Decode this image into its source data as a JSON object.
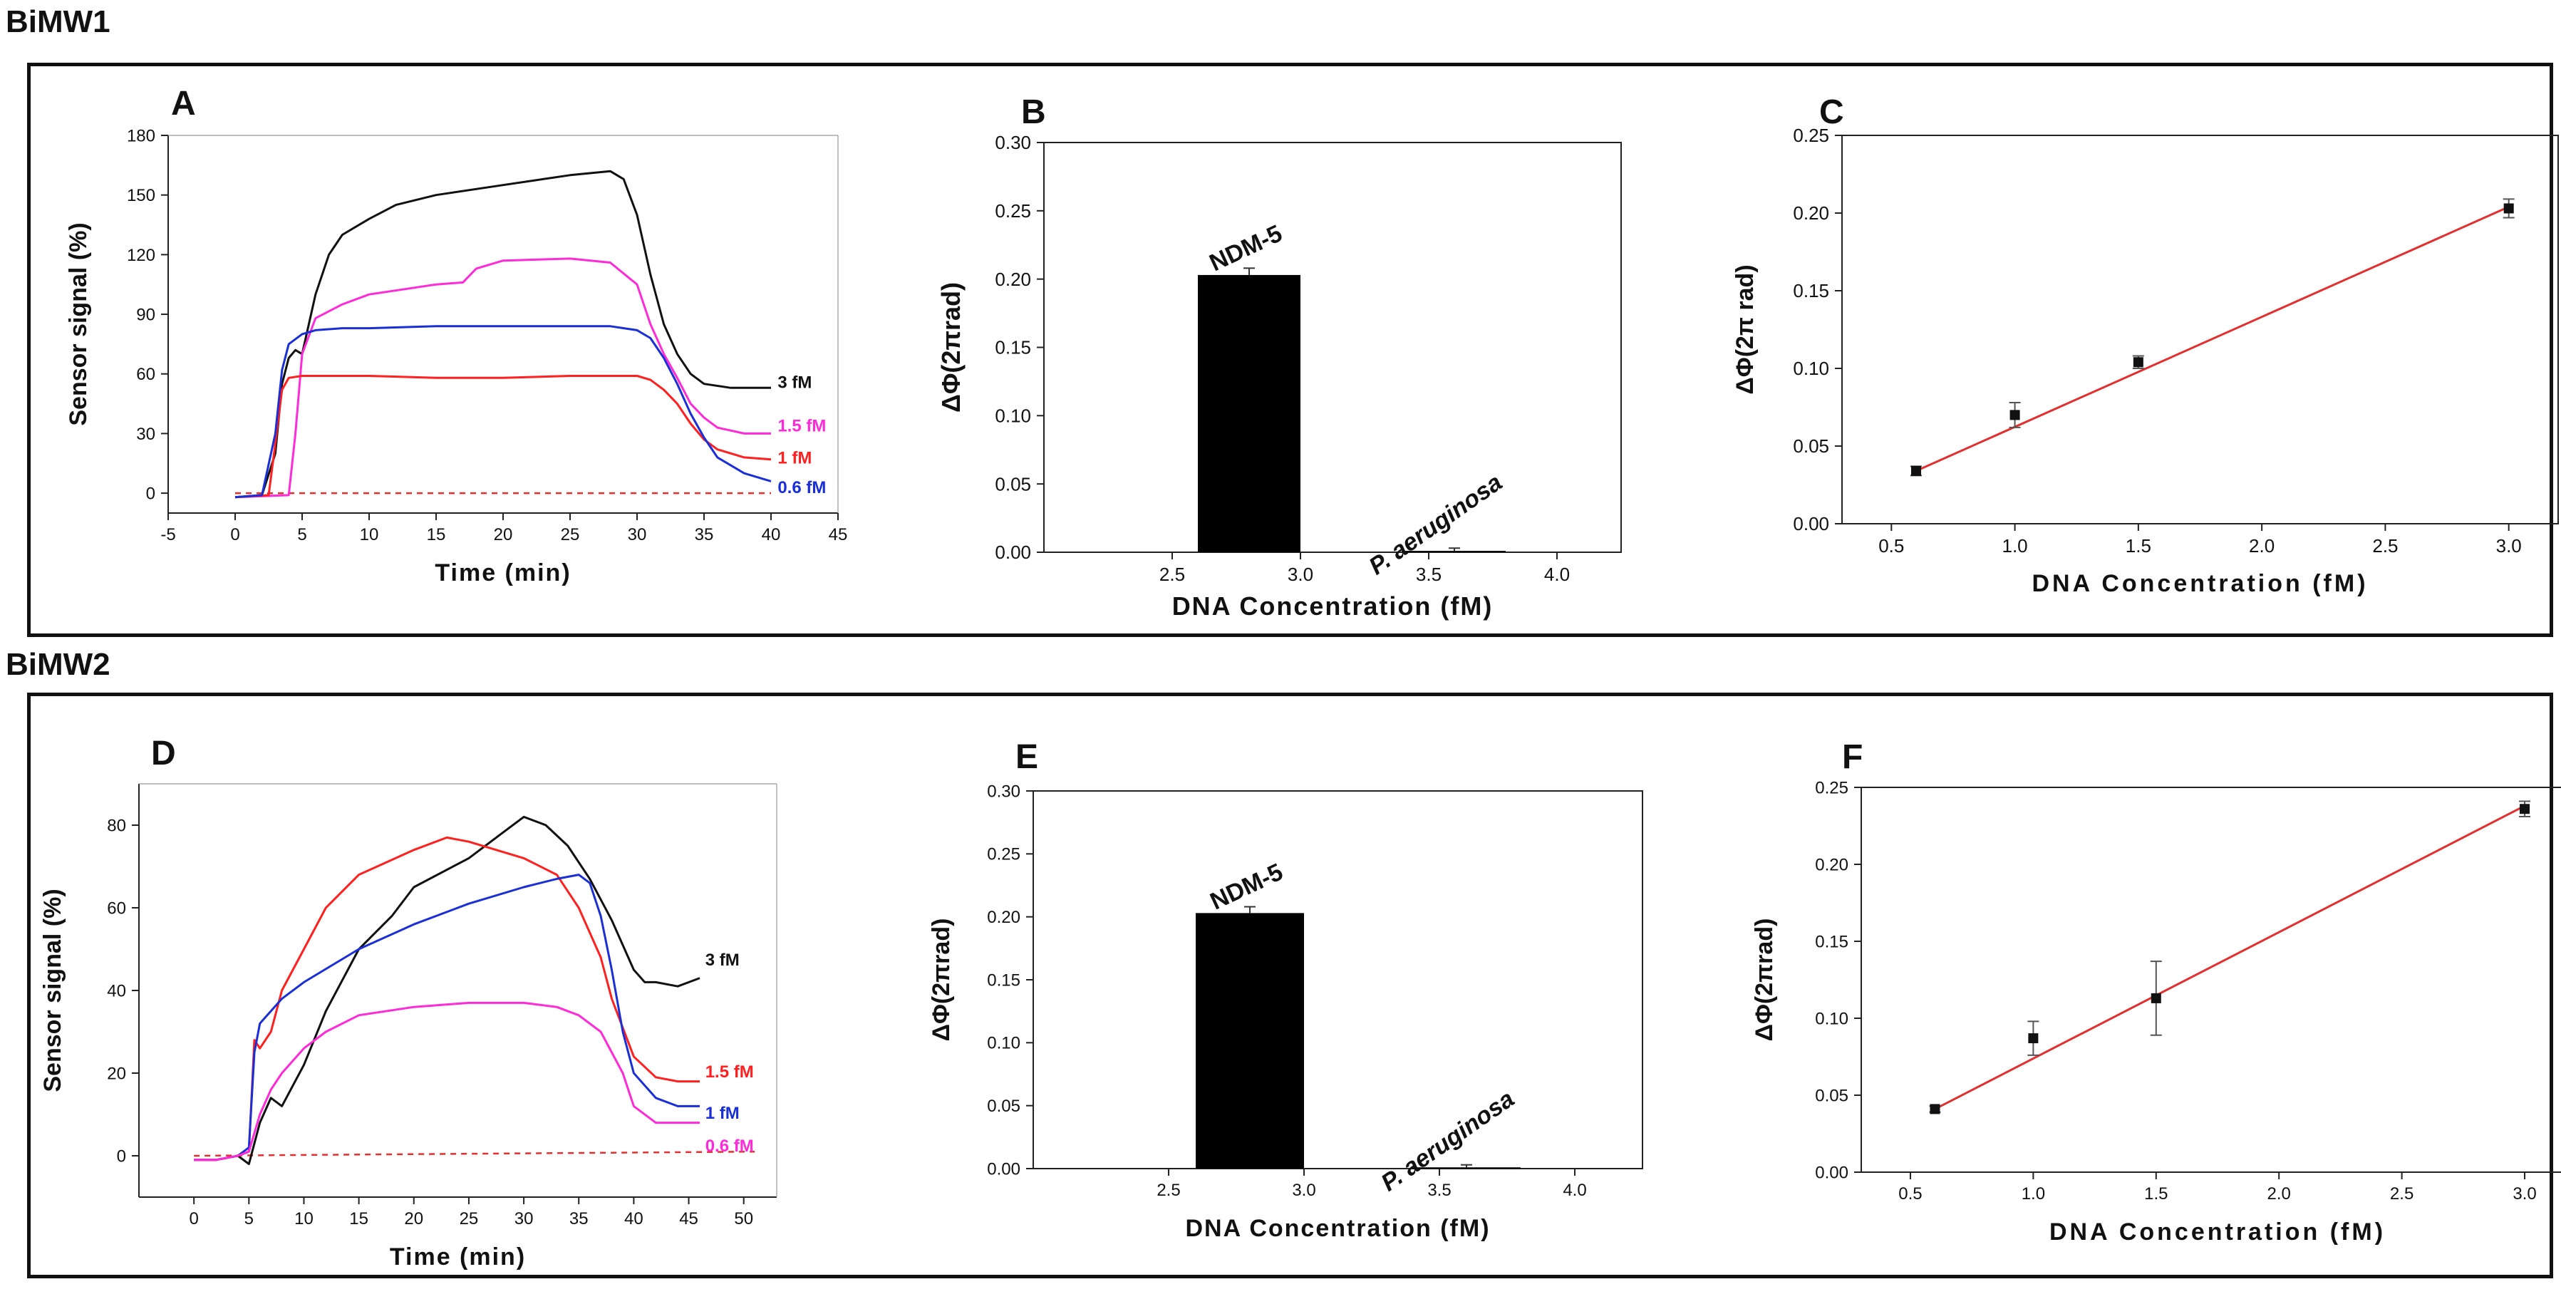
{
  "sections": [
    {
      "title": "BiMW1"
    },
    {
      "title": "BiMW2"
    }
  ],
  "chart_data": [
    {
      "panel": "A",
      "type": "line",
      "title": "",
      "xlabel": "Time (min)",
      "ylabel": "Sensor signal (%)",
      "xlim": [
        -5,
        45
      ],
      "ylim": [
        -10,
        180
      ],
      "xticks": [
        -5,
        0,
        5,
        10,
        15,
        20,
        25,
        30,
        35,
        40,
        45
      ],
      "yticks": [
        0,
        30,
        60,
        90,
        120,
        150,
        180
      ],
      "baseline": {
        "x": [
          0,
          40
        ],
        "y": [
          0,
          0
        ],
        "color": "#e03030",
        "dash": true
      },
      "series": [
        {
          "name": "3 fM",
          "color": "#111111",
          "x": [
            0,
            2,
            3,
            3.5,
            4,
            4.5,
            5,
            5.5,
            6,
            7,
            8,
            10,
            12,
            15,
            20,
            25,
            28,
            29,
            30,
            31,
            32,
            33,
            34,
            35,
            37,
            40
          ],
          "y": [
            -2,
            -1,
            20,
            55,
            68,
            72,
            70,
            85,
            100,
            120,
            130,
            138,
            145,
            150,
            155,
            160,
            162,
            158,
            140,
            110,
            85,
            70,
            60,
            55,
            53,
            53
          ]
        },
        {
          "name": "1.5 fM",
          "color": "#ff2bd6",
          "x": [
            0,
            4,
            4.5,
            5,
            6,
            8,
            10,
            13,
            15,
            17,
            18,
            20,
            25,
            28,
            30,
            31,
            32,
            33,
            34,
            35,
            36,
            38,
            40
          ],
          "y": [
            -2,
            -1,
            30,
            70,
            88,
            95,
            100,
            103,
            105,
            106,
            113,
            117,
            118,
            116,
            105,
            85,
            70,
            58,
            45,
            38,
            33,
            30,
            30
          ]
        },
        {
          "name": "1 fM",
          "color": "#ff2020",
          "x": [
            0,
            2.5,
            3,
            3.5,
            4,
            5,
            10,
            15,
            20,
            25,
            30,
            31,
            32,
            33,
            34,
            35,
            36,
            38,
            40
          ],
          "y": [
            -2,
            -1,
            25,
            52,
            58,
            59,
            59,
            58,
            58,
            59,
            59,
            57,
            52,
            45,
            35,
            27,
            22,
            18,
            17
          ]
        },
        {
          "name": "0.6 fM",
          "color": "#1a2fd6",
          "x": [
            0,
            2,
            3,
            3.5,
            4,
            5,
            6,
            8,
            10,
            15,
            20,
            25,
            28,
            30,
            31,
            32,
            33,
            34,
            35,
            36,
            38,
            40
          ],
          "y": [
            -2,
            -1,
            30,
            62,
            75,
            80,
            82,
            83,
            83,
            84,
            84,
            84,
            84,
            82,
            78,
            68,
            55,
            40,
            28,
            18,
            10,
            6
          ]
        }
      ]
    },
    {
      "panel": "B",
      "type": "bar",
      "xlabel": "DNA Concentration (fM)",
      "ylabel": "ΔΦ(2πrad)",
      "xlim": [
        2.0,
        4.25
      ],
      "ylim": [
        0,
        0.3
      ],
      "xticks": [
        2.5,
        3.0,
        3.5,
        4.0
      ],
      "yticks": [
        0.0,
        0.05,
        0.1,
        0.15,
        0.2,
        0.25,
        0.3
      ],
      "bars": [
        {
          "label": "NDM-5",
          "x_start": 2.6,
          "x_end": 3.0,
          "value": 0.203,
          "error": 0.005
        },
        {
          "label": "P. aeruginosa",
          "x_start": 3.4,
          "x_end": 3.8,
          "value": 0.001,
          "error": 0.002
        }
      ]
    },
    {
      "panel": "C",
      "type": "scatter",
      "xlabel": "DNA Concentration (fM)",
      "ylabel": "ΔΦ(2π rad)",
      "xlim": [
        0.3,
        3.2
      ],
      "ylim": [
        0,
        0.25
      ],
      "xticks": [
        0.5,
        1.0,
        1.5,
        2.0,
        2.5,
        3.0
      ],
      "yticks": [
        0.0,
        0.05,
        0.1,
        0.15,
        0.2,
        0.25
      ],
      "x": [
        0.6,
        1.0,
        1.5,
        3.0
      ],
      "y": [
        0.034,
        0.07,
        0.104,
        0.203
      ],
      "yerr": [
        0.003,
        0.008,
        0.004,
        0.006
      ],
      "fit": {
        "x": [
          0.6,
          3.0
        ],
        "y": [
          0.034,
          0.204
        ],
        "color": "#e03030"
      }
    },
    {
      "panel": "D",
      "type": "line",
      "xlabel": "Time (min)",
      "ylabel": "Sensor signal (%)",
      "xlim": [
        -5,
        53
      ],
      "ylim": [
        -10,
        90
      ],
      "xticks": [
        0,
        5,
        10,
        15,
        20,
        25,
        30,
        35,
        40,
        45,
        50
      ],
      "yticks": [
        0,
        20,
        40,
        60,
        80
      ],
      "baseline": {
        "x": [
          0,
          51
        ],
        "y": [
          0,
          1
        ],
        "color": "#e03030",
        "dash": true
      },
      "series": [
        {
          "name": "3 fM",
          "color": "#111111",
          "x": [
            0,
            2,
            4,
            5,
            6,
            7,
            8,
            10,
            12,
            15,
            18,
            20,
            25,
            28,
            30,
            32,
            34,
            36,
            38,
            40,
            41,
            42,
            44,
            46
          ],
          "y": [
            -1,
            -1,
            0,
            -2,
            8,
            14,
            12,
            22,
            35,
            50,
            58,
            65,
            72,
            78,
            82,
            80,
            75,
            67,
            57,
            45,
            42,
            42,
            41,
            43
          ]
        },
        {
          "name": "1.5 fM",
          "color": "#ff2020",
          "x": [
            0,
            2,
            4,
            5,
            5.5,
            6,
            7,
            8,
            10,
            12,
            15,
            20,
            23,
            25,
            30,
            33,
            35,
            37,
            38,
            40,
            42,
            44,
            46
          ],
          "y": [
            -1,
            -1,
            0,
            1,
            28,
            26,
            30,
            40,
            50,
            60,
            68,
            74,
            77,
            76,
            72,
            68,
            60,
            48,
            38,
            24,
            19,
            18,
            18
          ]
        },
        {
          "name": "1 fM",
          "color": "#1a2fd6",
          "x": [
            0,
            2,
            4,
            5,
            5.5,
            6,
            8,
            10,
            15,
            20,
            25,
            30,
            33,
            35,
            36,
            37,
            38,
            39,
            40,
            42,
            44,
            46
          ],
          "y": [
            -1,
            -1,
            0,
            2,
            25,
            32,
            38,
            42,
            50,
            56,
            61,
            65,
            67,
            68,
            66,
            58,
            45,
            30,
            20,
            14,
            12,
            12
          ]
        },
        {
          "name": "0.6 fM",
          "color": "#ff2bd6",
          "x": [
            0,
            2,
            4,
            5,
            6,
            7,
            8,
            10,
            12,
            15,
            20,
            25,
            30,
            33,
            35,
            37,
            39,
            40,
            42,
            44,
            46
          ],
          "y": [
            -1,
            -1,
            0,
            1,
            10,
            16,
            20,
            26,
            30,
            34,
            36,
            37,
            37,
            36,
            34,
            30,
            20,
            12,
            8,
            8,
            8
          ]
        }
      ]
    },
    {
      "panel": "E",
      "type": "bar",
      "xlabel": "DNA Concentration (fM)",
      "ylabel": "ΔΦ(2πrad)",
      "xlim": [
        2.0,
        4.25
      ],
      "ylim": [
        0,
        0.3
      ],
      "xticks": [
        2.5,
        3.0,
        3.5,
        4.0
      ],
      "yticks": [
        0.0,
        0.05,
        0.1,
        0.15,
        0.2,
        0.25,
        0.3
      ],
      "bars": [
        {
          "label": "NDM-5",
          "x_start": 2.6,
          "x_end": 3.0,
          "value": 0.203,
          "error": 0.005
        },
        {
          "label": "P. aeruginosa",
          "x_start": 3.4,
          "x_end": 3.8,
          "value": 0.001,
          "error": 0.002
        }
      ]
    },
    {
      "panel": "F",
      "type": "scatter",
      "xlabel": "DNA Concentration (fM)",
      "ylabel": "ΔΦ(2πrad)",
      "xlim": [
        0.3,
        3.2
      ],
      "ylim": [
        0,
        0.25
      ],
      "xticks": [
        0.5,
        1.0,
        1.5,
        2.0,
        2.5,
        3.0
      ],
      "yticks": [
        0.0,
        0.05,
        0.1,
        0.15,
        0.2,
        0.25
      ],
      "x": [
        0.6,
        1.0,
        1.5,
        3.0
      ],
      "y": [
        0.041,
        0.087,
        0.113,
        0.236
      ],
      "yerr": [
        0.002,
        0.011,
        0.024,
        0.005
      ],
      "fit": {
        "x": [
          0.6,
          3.0
        ],
        "y": [
          0.041,
          0.238
        ],
        "color": "#e03030"
      }
    }
  ]
}
